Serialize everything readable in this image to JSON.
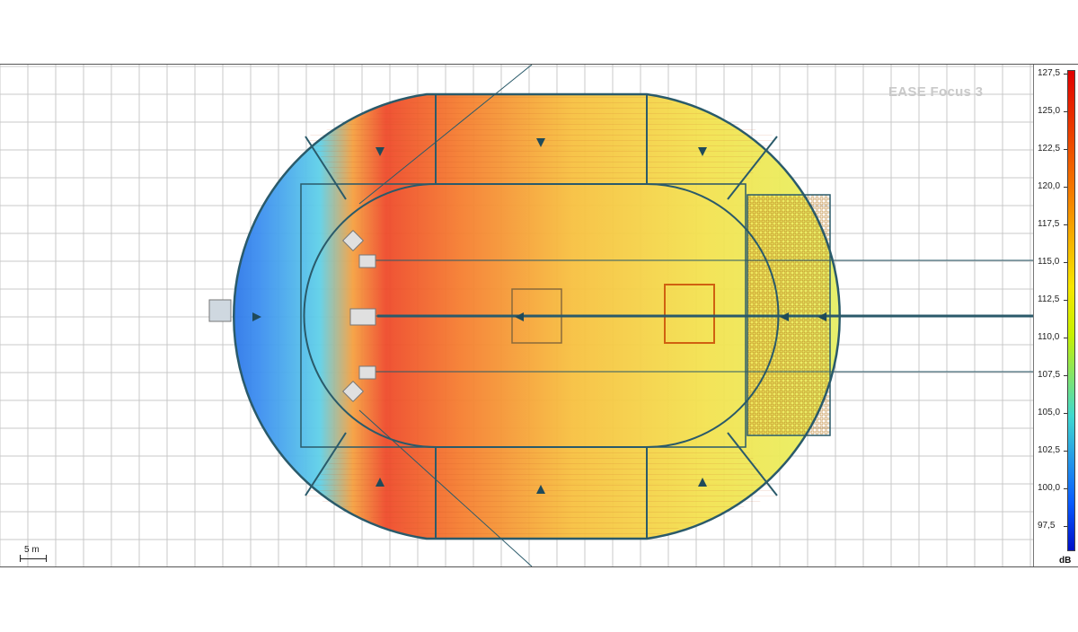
{
  "watermark": "EASE Focus 3",
  "scale": {
    "label": "5 m"
  },
  "colorbar": {
    "unit": "dB",
    "ticks": [
      "127,5",
      "125,0",
      "122,5",
      "120,0",
      "117,5",
      "115,0",
      "112,5",
      "110,0",
      "107,5",
      "105,0",
      "102,5",
      "100,0",
      "97,5"
    ]
  },
  "colors": {
    "grid": "#c8c8c8",
    "outline": "#2a5a6a",
    "hot": "#e00000",
    "cold": "#0010c8"
  }
}
